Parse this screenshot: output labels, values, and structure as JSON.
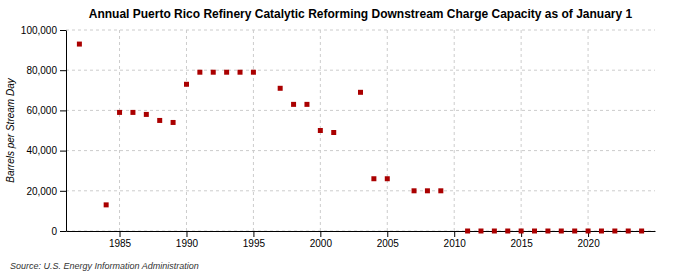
{
  "chart_data": {
    "type": "scatter",
    "title": "Annual Puerto Rico Refinery Catalytic Reforming Downstream Charge Capacity as of January 1",
    "ylabel": "Barrels per Stream Day",
    "annotations": [
      "Source: U.S. Energy Information Administration"
    ],
    "x": [
      1982,
      1984,
      1985,
      1986,
      1987,
      1988,
      1989,
      1990,
      1991,
      1992,
      1993,
      1994,
      1995,
      1997,
      1998,
      1999,
      2000,
      2001,
      2003,
      2004,
      2005,
      2007,
      2008,
      2009,
      2011,
      2012,
      2013,
      2014,
      2015,
      2016,
      2017,
      2018,
      2019,
      2020,
      2021,
      2022,
      2023,
      2024
    ],
    "values": [
      93000,
      13000,
      59000,
      59000,
      58000,
      55000,
      54000,
      73000,
      79000,
      79000,
      79000,
      79000,
      79000,
      71000,
      63000,
      63000,
      50000,
      49000,
      69000,
      26000,
      26000,
      20000,
      20000,
      20000,
      0,
      0,
      0,
      0,
      0,
      0,
      0,
      0,
      0,
      0,
      0,
      0,
      0,
      0
    ],
    "color": "#aa0000",
    "marker": "square",
    "xlim": [
      1981,
      2025
    ],
    "xticks": [
      1985,
      1990,
      1995,
      2000,
      2005,
      2010,
      2015,
      2020
    ],
    "ylim": [
      0,
      100000
    ],
    "yticks": [
      0,
      {
        "value": 20000,
        "label": "20,000"
      },
      {
        "value": 40000,
        "label": "40,000"
      },
      {
        "value": 60000,
        "label": "60,000"
      },
      {
        "value": 80000,
        "label": "80,000"
      },
      {
        "value": 100000,
        "label": "100,000"
      }
    ],
    "grid": true
  }
}
